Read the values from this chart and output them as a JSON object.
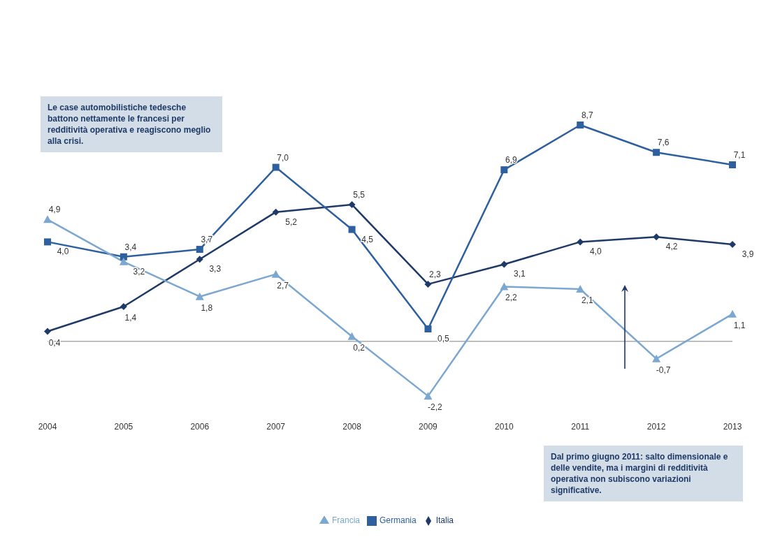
{
  "chart_data": {
    "type": "line",
    "categories": [
      "2004",
      "2005",
      "2006",
      "2007",
      "2008",
      "2009",
      "2010",
      "2011",
      "2012",
      "2013"
    ],
    "series": [
      {
        "name": "Italia",
        "color": "#1f3a68",
        "marker": "diamond",
        "values": [
          0.4,
          1.4,
          3.3,
          5.2,
          5.5,
          2.3,
          3.1,
          4.0,
          4.2,
          3.9
        ],
        "value_labels": [
          "0,4",
          "1,4",
          "3,3",
          "5,2",
          "5,5",
          "2,3",
          "3,1",
          "4,0",
          "4,2",
          "3,9"
        ]
      },
      {
        "name": "Germania",
        "color": "#2e5f9e",
        "marker": "square",
        "values": [
          4.0,
          3.4,
          3.7,
          7.0,
          4.5,
          0.5,
          6.9,
          8.7,
          7.6,
          7.1
        ],
        "value_labels": [
          "4,0",
          "3,4",
          "3,7",
          "7,0",
          "4,5",
          "0,5",
          "6,9",
          "8,7",
          "7,6",
          "7,1"
        ]
      },
      {
        "name": "Francia",
        "color": "#7ba7d1",
        "marker": "triangle",
        "values": [
          4.9,
          3.2,
          1.8,
          2.7,
          0.2,
          -2.2,
          2.2,
          2.1,
          -0.7,
          1.1
        ],
        "value_labels": [
          "4,9",
          "3,2",
          "1,8",
          "2,7",
          "0,2",
          "-2,2",
          "2,2",
          "2,1",
          "-0,7",
          "1,1"
        ]
      }
    ],
    "legend": "bottom",
    "grid": false,
    "annotations": [
      "Le case automobilistiche tedesche battono nettamente le francesi per redditività operativa e reagiscono meglio alla crisi.",
      "Dal primo giugno 2011: salto dimensionale e delle vendite, ma i margini di redditività operativa non subiscono variazioni significative."
    ]
  }
}
